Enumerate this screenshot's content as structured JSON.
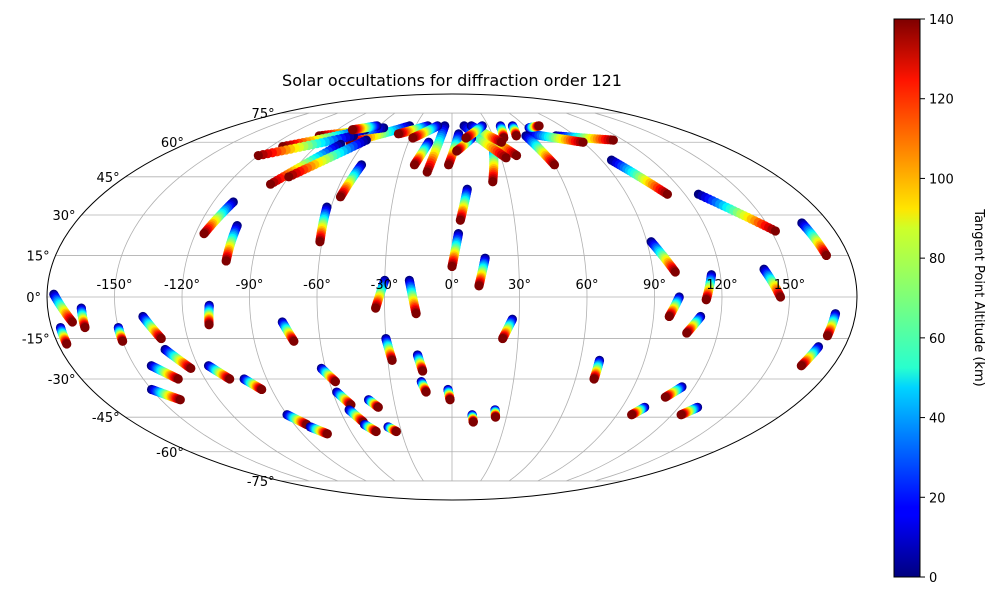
{
  "chart_data": {
    "type": "scatter",
    "projection": "mollweide",
    "title": "Solar occultations for diffraction order 121",
    "grid": true,
    "lon_tick_labels": [
      "-150°",
      "-120°",
      "-90°",
      "-60°",
      "-30°",
      "0°",
      "30°",
      "60°",
      "90°",
      "120°",
      "150°"
    ],
    "lat_tick_labels": [
      "-75°",
      "-60°",
      "-45°",
      "-30°",
      "-15°",
      "0°",
      "15°",
      "30°",
      "45°",
      "60°",
      "75°"
    ],
    "colorbar": {
      "label": "Tangent Point Altitude (km)",
      "range": [
        0,
        140
      ],
      "tick_labels": [
        "0",
        "20",
        "40",
        "60",
        "80",
        "100",
        "120",
        "140"
      ],
      "colormap": "jet"
    },
    "tracks": [
      {
        "lon0": -177,
        "lat0": 1,
        "lon1": -170,
        "lat1": -9
      },
      {
        "lon0": -176,
        "lat0": -11,
        "lon1": -176,
        "lat1": -17
      },
      {
        "lon0": -165,
        "lat0": -4,
        "lon1": -165,
        "lat1": -11
      },
      {
        "lon0": -150,
        "lat0": -11,
        "lon1": -150,
        "lat1": -16
      },
      {
        "lon0": -138,
        "lat0": -7,
        "lon1": -132,
        "lat1": -15
      },
      {
        "lon0": -142,
        "lat0": -25,
        "lon1": -133,
        "lat1": -30
      },
      {
        "lon0": -132,
        "lat0": -19,
        "lon1": -124,
        "lat1": -26
      },
      {
        "lon0": -115,
        "lat0": -25,
        "lon1": -108,
        "lat1": -30
      },
      {
        "lon0": -150,
        "lat0": -34,
        "lon1": -140,
        "lat1": -38
      },
      {
        "lon0": -101,
        "lat0": -30,
        "lon1": -95,
        "lat1": -34
      },
      {
        "lon0": -108,
        "lat0": -3,
        "lon1": -109,
        "lat1": -10
      },
      {
        "lon0": -110,
        "lat0": 35,
        "lon1": -116,
        "lat1": 23
      },
      {
        "lon0": -102,
        "lat0": 26,
        "lon1": -102,
        "lat1": 13
      },
      {
        "lon0": -90,
        "lat0": -44,
        "lon1": -83,
        "lat1": -48
      },
      {
        "lon0": -82,
        "lat0": -49,
        "lon1": -75,
        "lat1": -52
      },
      {
        "lon0": -76,
        "lat0": -9,
        "lon1": -72,
        "lat1": -16
      },
      {
        "lon0": -62,
        "lat0": -26,
        "lon1": -57,
        "lat1": -31
      },
      {
        "lon0": -58,
        "lat0": -35,
        "lon1": -53,
        "lat1": -40
      },
      {
        "lon0": -55,
        "lat0": -42,
        "lon1": -50,
        "lat1": -47
      },
      {
        "lon0": -50,
        "lat0": -48,
        "lon1": -45,
        "lat1": -51
      },
      {
        "lon0": -43,
        "lat0": -38,
        "lon1": -39,
        "lat1": -41
      },
      {
        "lon0": -37,
        "lat0": -49,
        "lon1": -33,
        "lat1": -51
      },
      {
        "lon0": -30,
        "lat0": -15,
        "lon1": -28,
        "lat1": -23
      },
      {
        "lon0": -16,
        "lat0": -21,
        "lon1": -14,
        "lat1": -27
      },
      {
        "lon0": -15,
        "lat0": -31,
        "lon1": -13,
        "lat1": -35
      },
      {
        "lon0": -2,
        "lat0": -34,
        "lon1": -1,
        "lat1": -38
      },
      {
        "lon0": -30,
        "lat0": 6,
        "lon1": -34,
        "lat1": -4
      },
      {
        "lon0": -19,
        "lat0": 6,
        "lon1": -16,
        "lat1": -6
      },
      {
        "lon0": -62,
        "lat0": 33,
        "lon1": -61,
        "lat1": 20
      },
      {
        "lon0": -53,
        "lat0": 50,
        "lon1": -57,
        "lat1": 37
      },
      {
        "lon0": 3,
        "lat0": 23,
        "lon1": 0,
        "lat1": 11
      },
      {
        "lon0": 8,
        "lat0": 40,
        "lon1": 4,
        "lat1": 28
      },
      {
        "lon0": 15,
        "lat0": 14,
        "lon1": 12,
        "lat1": 4
      },
      {
        "lon0": 27,
        "lat0": -8,
        "lon1": 23,
        "lat1": -15
      },
      {
        "lon0": 11,
        "lat0": -44,
        "lon1": 12,
        "lat1": -47
      },
      {
        "lon0": 23,
        "lat0": -42,
        "lon1": 24,
        "lat1": -45
      },
      {
        "lon0": 69,
        "lat0": -23,
        "lon1": 69,
        "lat1": -30
      },
      {
        "lon0": 92,
        "lat0": 20,
        "lon1": 100,
        "lat1": 9
      },
      {
        "lon0": 101,
        "lat0": 0,
        "lon1": 97,
        "lat1": -7
      },
      {
        "lon0": 111,
        "lat0": -7,
        "lon1": 106,
        "lat1": -13
      },
      {
        "lon0": 116,
        "lat0": 8,
        "lon1": 113,
        "lat1": -1
      },
      {
        "lon0": 114,
        "lat0": -33,
        "lon1": 109,
        "lat1": -37
      },
      {
        "lon0": 102,
        "lat0": -41,
        "lon1": 98,
        "lat1": -44
      },
      {
        "lon0": 130,
        "lat0": -41,
        "lon1": 125,
        "lat1": -44
      },
      {
        "lon0": 140,
        "lat0": 10,
        "lon1": 146,
        "lat1": 0
      },
      {
        "lon0": 127,
        "lat0": 38,
        "lon1": 152,
        "lat1": 24
      },
      {
        "lon0": 167,
        "lat0": 27,
        "lon1": 170,
        "lat1": 15
      },
      {
        "lon0": 171,
        "lat0": -6,
        "lon1": 170,
        "lat1": -14
      },
      {
        "lon0": 168,
        "lat0": -18,
        "lon1": 165,
        "lat1": -25
      },
      {
        "lon0": 96,
        "lat0": 52,
        "lon1": 111,
        "lat1": 38
      },
      {
        "lon0": 76,
        "lat0": 63,
        "lon1": 113,
        "lat1": 61
      },
      {
        "lon0": 58,
        "lat0": 64,
        "lon1": 90,
        "lat1": 60
      },
      {
        "lon0": 62,
        "lat0": 67,
        "lon1": 72,
        "lat1": 68
      },
      {
        "lon0": 54,
        "lat0": 63,
        "lon1": 60,
        "lat1": 50
      },
      {
        "lon0": 40,
        "lat0": 68,
        "lon1": 37,
        "lat1": 62
      },
      {
        "lon0": 50,
        "lat0": 68,
        "lon1": 47,
        "lat1": 63
      },
      {
        "lon0": 28,
        "lat0": 60,
        "lon1": 22,
        "lat1": 43
      },
      {
        "lon0": 23,
        "lat0": 65,
        "lon1": 40,
        "lat1": 54
      },
      {
        "lon0": 10,
        "lat0": 68,
        "lon1": 33,
        "lat1": 53
      },
      {
        "lon0": 16,
        "lat0": 68,
        "lon1": 34,
        "lat1": 60
      },
      {
        "lon0": 5,
        "lat0": 64,
        "lon1": -2,
        "lat1": 50
      },
      {
        "lon0": 14,
        "lat0": 62,
        "lon1": 3,
        "lat1": 56
      },
      {
        "lon0": -6,
        "lat0": 68,
        "lon1": -14,
        "lat1": 47
      },
      {
        "lon0": -16,
        "lat0": 60,
        "lon1": -22,
        "lat1": 50
      },
      {
        "lon0": -35,
        "lat0": 68,
        "lon1": -70,
        "lat1": 60
      },
      {
        "lon0": -55,
        "lat0": 67,
        "lon1": -97,
        "lat1": 63
      },
      {
        "lon0": -68,
        "lat0": 66,
        "lon1": -112,
        "lat1": 58
      },
      {
        "lon0": -72,
        "lat0": 63,
        "lon1": -120,
        "lat1": 54
      },
      {
        "lon0": -75,
        "lat0": 59,
        "lon1": -97,
        "lat1": 42
      },
      {
        "lon0": -60,
        "lat0": 61,
        "lon1": -90,
        "lat1": 45
      },
      {
        "lon0": -20,
        "lat0": 68,
        "lon1": -40,
        "lat1": 64
      },
      {
        "lon0": -12,
        "lat0": 68,
        "lon1": -28,
        "lat1": 62
      },
      {
        "lon0": 25,
        "lat0": 68,
        "lon1": 10,
        "lat1": 62
      },
      {
        "lon0": -62,
        "lat0": 68,
        "lon1": -78,
        "lat1": 66
      }
    ]
  }
}
